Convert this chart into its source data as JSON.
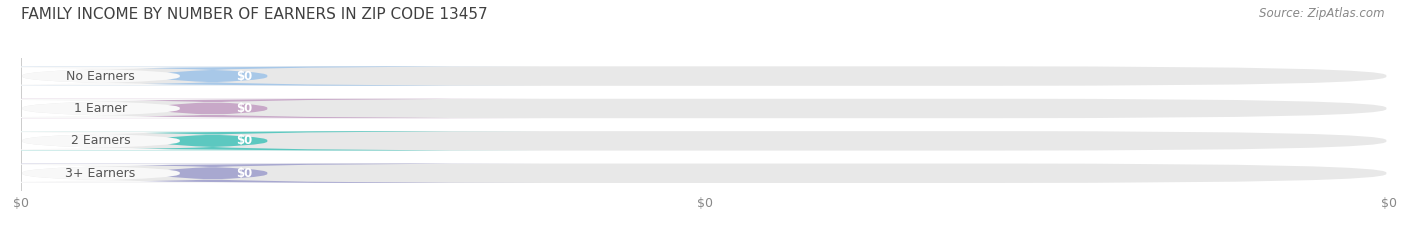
{
  "title": "FAMILY INCOME BY NUMBER OF EARNERS IN ZIP CODE 13457",
  "source": "Source: ZipAtlas.com",
  "categories": [
    "No Earners",
    "1 Earner",
    "2 Earners",
    "3+ Earners"
  ],
  "values": [
    0,
    0,
    0,
    0
  ],
  "bar_colors": [
    "#a8c8e8",
    "#c8a8c8",
    "#5cc8c0",
    "#a8a8d0"
  ],
  "bar_bg_color": "#e8e8e8",
  "label_bg_color": "#f5f5f5",
  "value_labels": [
    "$0",
    "$0",
    "$0",
    "$0"
  ],
  "xlim": [
    0,
    1
  ],
  "xtick_positions": [
    0.0,
    0.5,
    1.0
  ],
  "xtick_labels": [
    "$0",
    "$0",
    "$0"
  ],
  "background_color": "#ffffff",
  "title_fontsize": 11,
  "source_fontsize": 8.5,
  "tick_fontsize": 9,
  "cat_fontsize": 9,
  "val_fontsize": 8.5
}
